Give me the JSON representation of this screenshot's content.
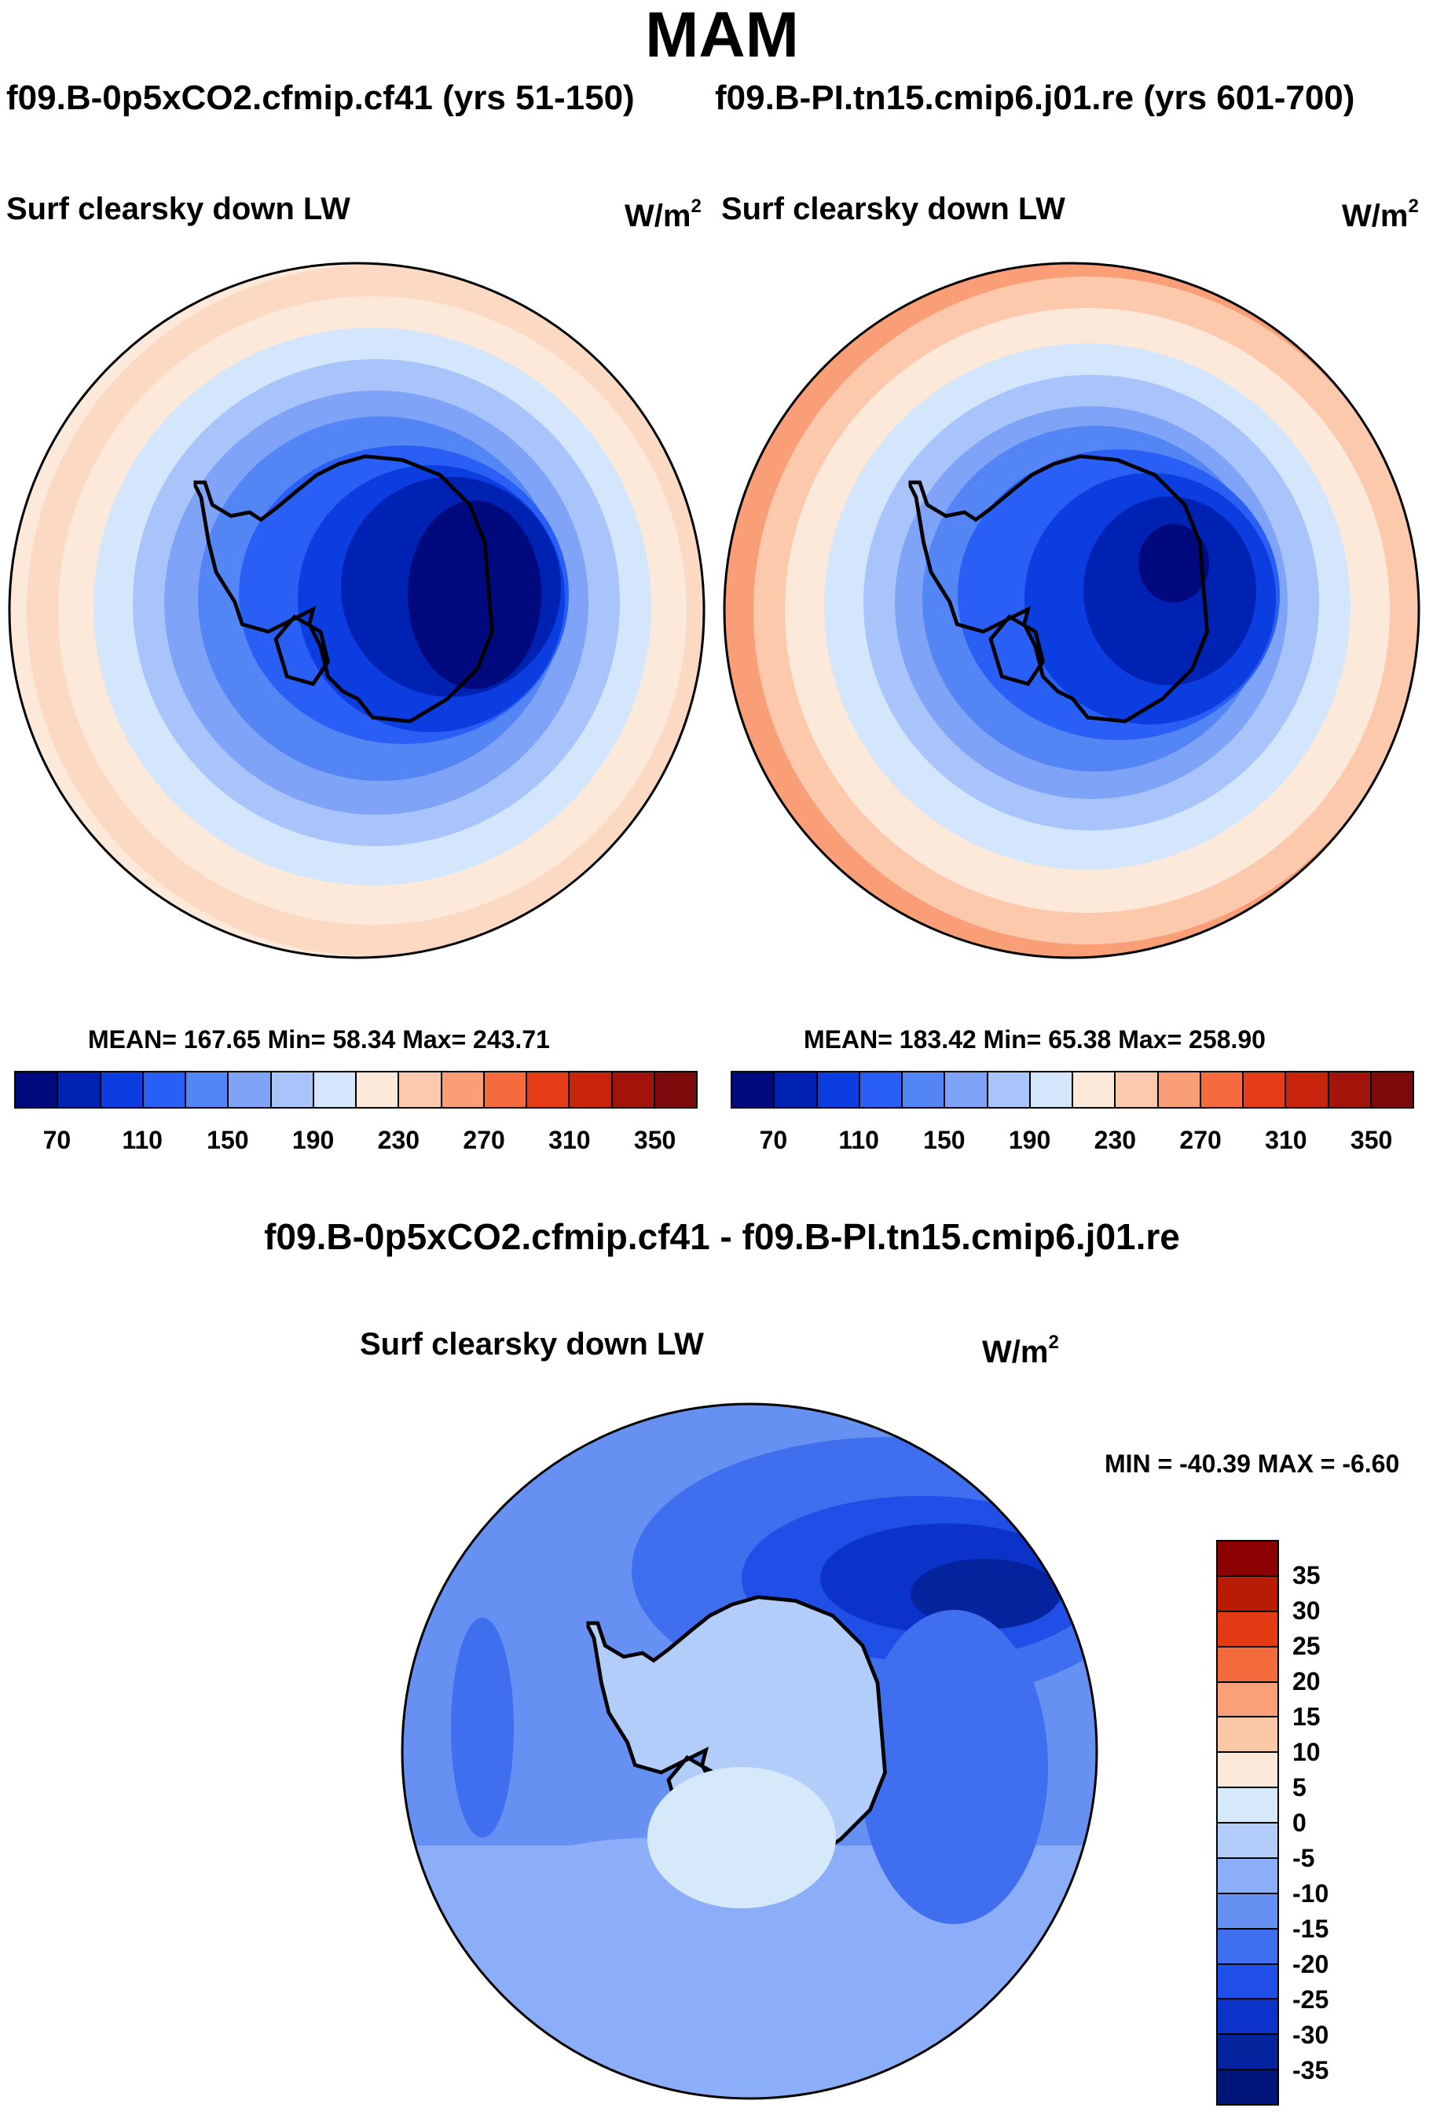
{
  "title": "MAM",
  "panels": [
    {
      "run_label": "f09.B-0p5xCO2.cfmip.cf41 (yrs 51-150)",
      "field": "Surf clearsky down LW",
      "units": "W/m",
      "units_exp": "2",
      "stats_label": "MEAN= 167.65  Min=  58.34  Max= 243.71",
      "mean": 167.65,
      "min": 58.34,
      "max": 243.71,
      "map_icon": "south-polar-map-icon"
    },
    {
      "run_label": "f09.B-PI.tn15.cmip6.j01.re (yrs 601-700)",
      "field": "Surf clearsky down LW",
      "units": "W/m",
      "units_exp": "2",
      "stats_label": "MEAN= 183.42  Min=  65.38  Max= 258.90",
      "mean": 183.42,
      "min": 65.38,
      "max": 258.9,
      "map_icon": "south-polar-map-icon"
    }
  ],
  "abs_colorbar": {
    "colors": [
      "#000a7e",
      "#0022b2",
      "#0b3de0",
      "#2a5ff5",
      "#5385f5",
      "#7ea3f7",
      "#a9c4fa",
      "#d3e6fb",
      "#fde9da",
      "#fcc9ad",
      "#fa9e78",
      "#f56b3e",
      "#e63d18",
      "#c7240b",
      "#a21309",
      "#7d0a0a"
    ],
    "tick_labels": [
      "70",
      "110",
      "150",
      "190",
      "230",
      "270",
      "310",
      "350"
    ]
  },
  "diff": {
    "title": "f09.B-0p5xCO2.cfmip.cf41 - f09.B-PI.tn15.cmip6.j01.re",
    "field": "Surf clearsky down LW",
    "units": "W/m",
    "units_exp": "2",
    "minmax_label": "MIN = -40.39 MAX =  -6.60",
    "min": -40.39,
    "max": -6.6,
    "map_icon": "south-polar-map-icon",
    "colorbar": {
      "colors": [
        "#8b0000",
        "#b91c05",
        "#e23a12",
        "#f36b3b",
        "#f9a07a",
        "#fbc8a8",
        "#fbe8d8",
        "#d6e9fb",
        "#b3cdfb",
        "#8cadf7",
        "#6690f2",
        "#3f6fee",
        "#1f4fe6",
        "#0c33c9",
        "#06239e",
        "#00157a"
      ],
      "tick_labels": [
        "35",
        "30",
        "25",
        "20",
        "15",
        "10",
        "5",
        "0",
        "-5",
        "-10",
        "-15",
        "-20",
        "-25",
        "-30",
        "-35"
      ]
    }
  },
  "chart_data": [
    {
      "type": "heatmap",
      "title": "Surf clearsky down LW",
      "subtitle": "f09.B-0p5xCO2.cfmip.cf41 (yrs 51-150)",
      "units": "W/m^2",
      "mean": 167.65,
      "min": 58.34,
      "max": 243.71,
      "levels": [
        70,
        90,
        110,
        130,
        150,
        170,
        190,
        210,
        230,
        250,
        270,
        290,
        310,
        330,
        350
      ]
    },
    {
      "type": "heatmap",
      "title": "Surf clearsky down LW",
      "subtitle": "f09.B-PI.tn15.cmip6.j01.re (yrs 601-700)",
      "units": "W/m^2",
      "mean": 183.42,
      "min": 65.38,
      "max": 258.9,
      "levels": [
        70,
        90,
        110,
        130,
        150,
        170,
        190,
        210,
        230,
        250,
        270,
        290,
        310,
        330,
        350
      ]
    },
    {
      "type": "heatmap",
      "title": "Surf clearsky down LW",
      "subtitle": "f09.B-0p5xCO2.cfmip.cf41 - f09.B-PI.tn15.cmip6.j01.re",
      "units": "W/m^2",
      "min": -40.39,
      "max": -6.6,
      "levels": [
        -35,
        -30,
        -25,
        -20,
        -15,
        -10,
        -5,
        0,
        5,
        10,
        15,
        20,
        25,
        30,
        35
      ]
    }
  ]
}
